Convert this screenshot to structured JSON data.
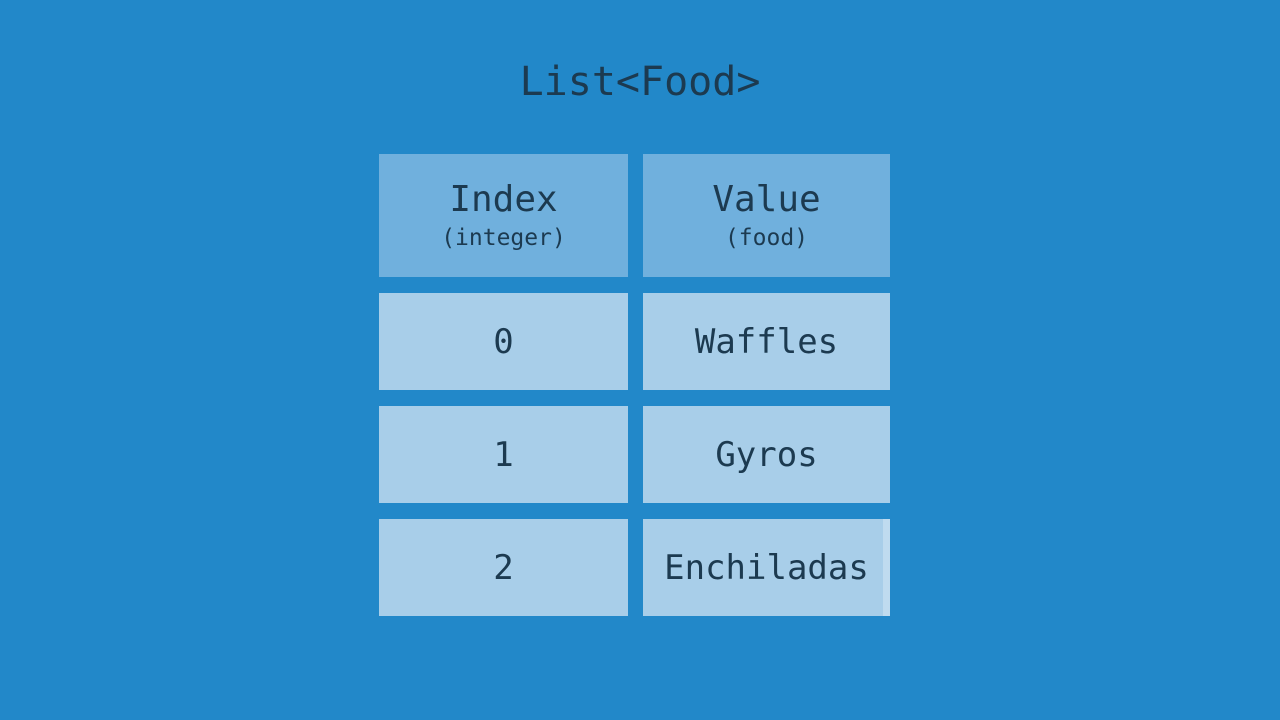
{
  "title": "List<Food>",
  "colors": {
    "background": "#2288c9",
    "header_fill": "#70b0dd",
    "cell_fill": "#a8cee9",
    "text": "#1c3a50",
    "artifact": "#c3ddf0"
  },
  "table": {
    "columns": [
      {
        "label": "Index",
        "type_label": "(integer)"
      },
      {
        "label": "Value",
        "type_label": "(food)"
      }
    ],
    "rows": [
      {
        "index": "0",
        "value": "Waffles"
      },
      {
        "index": "1",
        "value": "Gyros"
      },
      {
        "index": "2",
        "value": "Enchiladas"
      }
    ]
  }
}
